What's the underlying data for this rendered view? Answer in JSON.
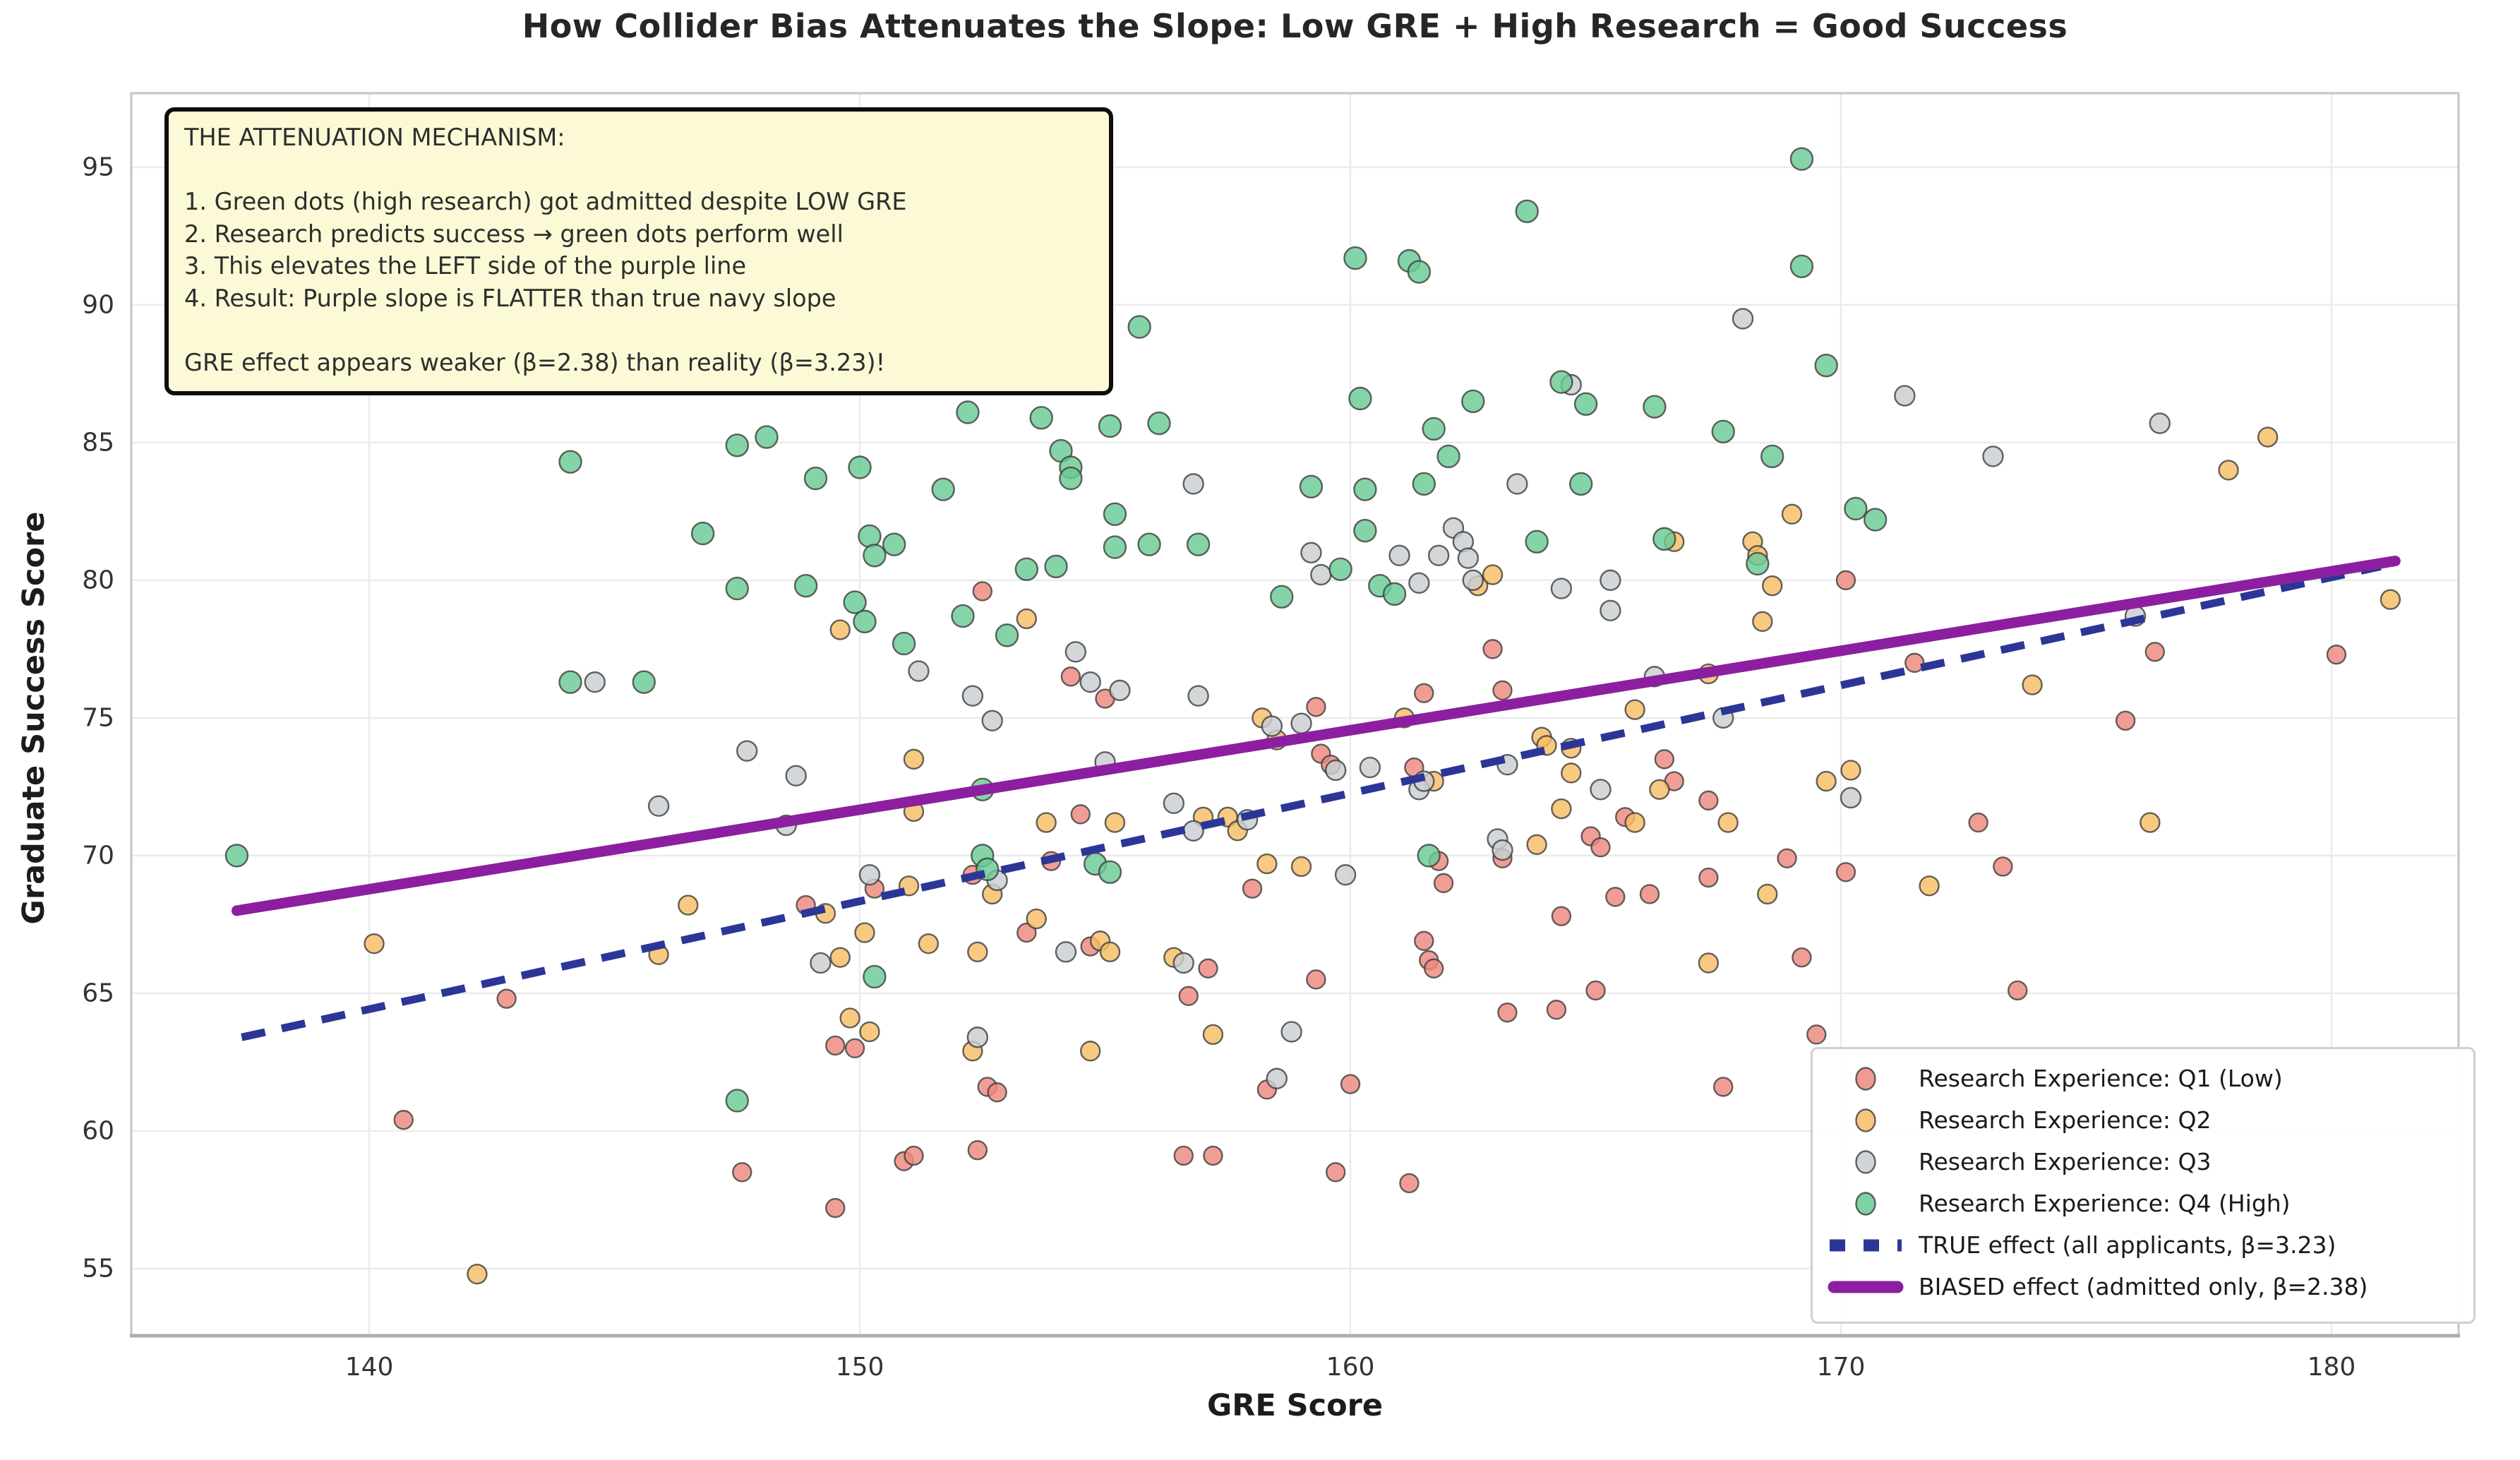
{
  "title": "How Collider Bias Attenuates the Slope: Low GRE + High Research = Good Success",
  "axes": {
    "xlabel": "GRE Score",
    "ylabel": "Graduate Success Score",
    "xticks": [
      140,
      150,
      160,
      170,
      180
    ],
    "yticks": [
      55,
      60,
      65,
      70,
      75,
      80,
      85,
      90,
      95
    ],
    "xlim": [
      135.15,
      182.59
    ],
    "ylim": [
      52.56,
      97.69
    ],
    "grid": true
  },
  "annotation": {
    "lines": [
      "THE ATTENUATION MECHANISM:",
      "",
      "1. Green dots (high research) got admitted despite LOW GRE",
      "2. Research predicts success → green dots perform well",
      "3. This elevates the LEFT side of the purple line",
      "4. Result: Purple slope is FLATTER than true navy slope",
      "",
      "GRE effect appears weaker (β=2.38) than reality (β=3.23)!"
    ],
    "background": "#fcfad6",
    "border_color": "#0d0d0d"
  },
  "legend": {
    "position": "lower right",
    "entries": [
      {
        "label": "Research Experience: Q1 (Low)",
        "marker": "dot",
        "color": "#ed897e"
      },
      {
        "label": "Research Experience: Q2",
        "marker": "dot",
        "color": "#f7bd64"
      },
      {
        "label": "Research Experience: Q3",
        "marker": "dot",
        "color": "#c9ced1"
      },
      {
        "label": "Research Experience: Q4 (High)",
        "marker": "dot",
        "color": "#69ca94"
      },
      {
        "label": "TRUE effect (all applicants, β=3.23)",
        "marker": "dashed-line",
        "color": "#2c3697"
      },
      {
        "label": "BIASED effect (admitted only, β=2.38)",
        "marker": "solid-line",
        "color": "#8c1f9f"
      }
    ]
  },
  "chart_data": {
    "type": "scatter",
    "title": "How Collider Bias Attenuates the Slope: Low GRE + High Research = Good Success",
    "xlabel": "GRE Score",
    "ylabel": "Graduate Success Score",
    "xlim": [
      135.15,
      182.59
    ],
    "ylim": [
      52.56,
      97.69
    ],
    "series": [
      {
        "name": "Research Experience: Q1 (Low)",
        "color": "#ed897e",
        "marker_radius": 13,
        "points": [
          [
            140.7,
            60.4
          ],
          [
            142.8,
            64.8
          ],
          [
            147.6,
            58.5
          ],
          [
            148.9,
            68.2
          ],
          [
            149.5,
            63.1
          ],
          [
            149.9,
            63.0
          ],
          [
            149.5,
            57.2
          ],
          [
            150.3,
            68.8
          ],
          [
            150.9,
            58.9
          ],
          [
            151.1,
            59.1
          ],
          [
            152.4,
            59.3
          ],
          [
            152.3,
            69.3
          ],
          [
            152.5,
            79.6
          ],
          [
            152.6,
            61.6
          ],
          [
            152.8,
            61.4
          ],
          [
            153.4,
            67.2
          ],
          [
            153.9,
            69.8
          ],
          [
            154.3,
            76.5
          ],
          [
            154.5,
            71.5
          ],
          [
            154.7,
            66.7
          ],
          [
            155.0,
            75.7
          ],
          [
            156.6,
            59.1
          ],
          [
            157.2,
            59.1
          ],
          [
            156.7,
            64.9
          ],
          [
            157.1,
            65.9
          ],
          [
            158.0,
            68.8
          ],
          [
            158.3,
            61.5
          ],
          [
            159.3,
            75.4
          ],
          [
            159.4,
            73.7
          ],
          [
            159.6,
            73.3
          ],
          [
            159.3,
            65.5
          ],
          [
            159.7,
            58.5
          ],
          [
            160.0,
            61.7
          ],
          [
            161.2,
            58.1
          ],
          [
            161.3,
            73.2
          ],
          [
            161.5,
            66.9
          ],
          [
            161.6,
            66.2
          ],
          [
            161.7,
            65.9
          ],
          [
            161.8,
            69.8
          ],
          [
            161.9,
            69.0
          ],
          [
            161.5,
            75.9
          ],
          [
            162.9,
            77.5
          ],
          [
            163.1,
            76.0
          ],
          [
            163.1,
            69.9
          ],
          [
            163.2,
            64.3
          ],
          [
            164.2,
            64.4
          ],
          [
            164.3,
            67.8
          ],
          [
            164.9,
            70.7
          ],
          [
            165.1,
            70.3
          ],
          [
            165.0,
            65.1
          ],
          [
            165.4,
            68.5
          ],
          [
            165.6,
            71.4
          ],
          [
            166.1,
            68.6
          ],
          [
            166.4,
            73.5
          ],
          [
            166.6,
            72.7
          ],
          [
            167.3,
            72.0
          ],
          [
            167.3,
            69.2
          ],
          [
            167.6,
            61.6
          ],
          [
            168.9,
            69.9
          ],
          [
            169.2,
            66.3
          ],
          [
            169.5,
            63.5
          ],
          [
            170.1,
            80.0
          ],
          [
            170.1,
            69.4
          ],
          [
            171.5,
            77.0
          ],
          [
            172.8,
            71.2
          ],
          [
            173.3,
            69.6
          ],
          [
            173.6,
            65.1
          ],
          [
            175.8,
            74.9
          ],
          [
            176.4,
            77.4
          ],
          [
            180.1,
            77.3
          ]
        ]
      },
      {
        "name": "Research Experience: Q2",
        "color": "#f7bd64",
        "marker_radius": 13.5,
        "points": [
          [
            140.1,
            66.8
          ],
          [
            142.2,
            54.8
          ],
          [
            145.9,
            66.4
          ],
          [
            146.5,
            68.2
          ],
          [
            149.3,
            67.9
          ],
          [
            149.6,
            78.2
          ],
          [
            149.6,
            66.3
          ],
          [
            149.8,
            64.1
          ],
          [
            150.2,
            63.6
          ],
          [
            150.1,
            67.2
          ],
          [
            151.0,
            68.9
          ],
          [
            151.1,
            73.5
          ],
          [
            151.1,
            71.6
          ],
          [
            151.4,
            66.8
          ],
          [
            152.3,
            62.9
          ],
          [
            152.4,
            66.5
          ],
          [
            152.7,
            68.6
          ],
          [
            153.4,
            78.6
          ],
          [
            153.6,
            67.7
          ],
          [
            153.8,
            71.2
          ],
          [
            154.7,
            62.9
          ],
          [
            154.9,
            66.9
          ],
          [
            155.1,
            66.5
          ],
          [
            155.2,
            71.2
          ],
          [
            156.4,
            66.3
          ],
          [
            157.0,
            71.4
          ],
          [
            157.2,
            63.5
          ],
          [
            157.5,
            71.4
          ],
          [
            157.7,
            70.9
          ],
          [
            158.2,
            75.0
          ],
          [
            158.3,
            69.7
          ],
          [
            158.5,
            74.2
          ],
          [
            159.0,
            69.6
          ],
          [
            161.1,
            75.0
          ],
          [
            161.7,
            72.7
          ],
          [
            162.6,
            79.8
          ],
          [
            162.9,
            80.2
          ],
          [
            163.8,
            70.4
          ],
          [
            163.9,
            74.3
          ],
          [
            164.0,
            74.0
          ],
          [
            164.3,
            71.7
          ],
          [
            164.5,
            73.9
          ],
          [
            164.5,
            73.0
          ],
          [
            165.8,
            75.3
          ],
          [
            165.8,
            71.2
          ],
          [
            166.3,
            72.4
          ],
          [
            166.6,
            81.4
          ],
          [
            167.3,
            76.6
          ],
          [
            167.3,
            66.1
          ],
          [
            167.7,
            71.2
          ],
          [
            168.2,
            81.4
          ],
          [
            168.3,
            80.9
          ],
          [
            168.4,
            78.5
          ],
          [
            168.5,
            68.6
          ],
          [
            168.6,
            79.8
          ],
          [
            169.0,
            82.4
          ],
          [
            169.7,
            72.7
          ],
          [
            170.2,
            73.1
          ],
          [
            171.8,
            68.9
          ],
          [
            173.9,
            76.2
          ],
          [
            176.3,
            71.2
          ],
          [
            177.9,
            84.0
          ],
          [
            178.7,
            85.2
          ],
          [
            181.2,
            79.3
          ]
        ]
      },
      {
        "name": "Research Experience: Q3",
        "color": "#c9ced1",
        "marker_radius": 14,
        "points": [
          [
            144.6,
            76.3
          ],
          [
            145.9,
            71.8
          ],
          [
            147.7,
            73.8
          ],
          [
            148.5,
            71.1
          ],
          [
            148.7,
            72.9
          ],
          [
            149.2,
            66.1
          ],
          [
            150.2,
            69.3
          ],
          [
            151.2,
            76.7
          ],
          [
            152.3,
            75.8
          ],
          [
            152.4,
            63.4
          ],
          [
            152.7,
            74.9
          ],
          [
            152.8,
            69.1
          ],
          [
            154.2,
            66.5
          ],
          [
            154.4,
            77.4
          ],
          [
            154.7,
            76.3
          ],
          [
            155.0,
            73.4
          ],
          [
            155.3,
            76.0
          ],
          [
            156.4,
            71.9
          ],
          [
            156.6,
            66.1
          ],
          [
            156.8,
            83.5
          ],
          [
            156.8,
            70.9
          ],
          [
            156.9,
            75.8
          ],
          [
            157.9,
            71.3
          ],
          [
            158.4,
            74.7
          ],
          [
            158.5,
            61.9
          ],
          [
            158.8,
            63.6
          ],
          [
            159.0,
            74.8
          ],
          [
            159.2,
            81.0
          ],
          [
            159.4,
            80.2
          ],
          [
            159.7,
            73.1
          ],
          [
            159.9,
            69.3
          ],
          [
            160.4,
            73.2
          ],
          [
            161.0,
            80.9
          ],
          [
            161.4,
            72.4
          ],
          [
            161.5,
            72.7
          ],
          [
            161.4,
            79.9
          ],
          [
            161.8,
            80.9
          ],
          [
            162.1,
            81.9
          ],
          [
            162.3,
            81.4
          ],
          [
            162.4,
            80.8
          ],
          [
            162.5,
            80.0
          ],
          [
            163.0,
            70.6
          ],
          [
            163.1,
            70.2
          ],
          [
            163.2,
            73.3
          ],
          [
            163.4,
            83.5
          ],
          [
            164.3,
            79.7
          ],
          [
            164.5,
            87.1
          ],
          [
            165.1,
            72.4
          ],
          [
            165.3,
            80.0
          ],
          [
            165.3,
            78.9
          ],
          [
            166.2,
            76.5
          ],
          [
            167.6,
            75.0
          ],
          [
            168.0,
            89.5
          ],
          [
            170.2,
            72.1
          ],
          [
            171.3,
            86.7
          ],
          [
            173.1,
            84.5
          ],
          [
            176.0,
            78.7
          ],
          [
            176.5,
            85.7
          ]
        ]
      },
      {
        "name": "Research Experience: Q4 (High)",
        "color": "#69ca94",
        "marker_radius": 15.5,
        "points": [
          [
            137.3,
            70.0
          ],
          [
            144.1,
            84.3
          ],
          [
            144.1,
            76.3
          ],
          [
            145.6,
            76.3
          ],
          [
            146.8,
            81.7
          ],
          [
            147.5,
            84.9
          ],
          [
            147.5,
            79.7
          ],
          [
            147.5,
            61.1
          ],
          [
            148.1,
            85.2
          ],
          [
            148.9,
            79.8
          ],
          [
            149.1,
            83.7
          ],
          [
            149.9,
            79.2
          ],
          [
            150.0,
            84.1
          ],
          [
            150.1,
            78.5
          ],
          [
            150.2,
            81.6
          ],
          [
            150.3,
            80.9
          ],
          [
            150.7,
            81.3
          ],
          [
            150.3,
            65.6
          ],
          [
            150.9,
            77.7
          ],
          [
            151.7,
            83.3
          ],
          [
            152.1,
            78.7
          ],
          [
            152.2,
            86.1
          ],
          [
            152.5,
            72.4
          ],
          [
            152.5,
            70.0
          ],
          [
            152.6,
            69.5
          ],
          [
            153.0,
            78.0
          ],
          [
            153.4,
            80.4
          ],
          [
            153.7,
            85.9
          ],
          [
            154.0,
            80.5
          ],
          [
            154.1,
            84.7
          ],
          [
            154.3,
            84.1
          ],
          [
            154.3,
            83.7
          ],
          [
            154.8,
            69.7
          ],
          [
            155.1,
            69.4
          ],
          [
            155.2,
            82.4
          ],
          [
            155.2,
            81.2
          ],
          [
            155.7,
            89.2
          ],
          [
            155.9,
            81.3
          ],
          [
            155.1,
            85.6
          ],
          [
            156.1,
            85.7
          ],
          [
            156.9,
            81.3
          ],
          [
            158.6,
            79.4
          ],
          [
            159.2,
            83.4
          ],
          [
            159.8,
            80.4
          ],
          [
            160.1,
            91.7
          ],
          [
            160.2,
            86.6
          ],
          [
            160.3,
            81.8
          ],
          [
            160.3,
            83.3
          ],
          [
            160.6,
            79.8
          ],
          [
            160.9,
            79.5
          ],
          [
            161.2,
            91.6
          ],
          [
            161.4,
            91.2
          ],
          [
            161.5,
            83.5
          ],
          [
            161.6,
            70.0
          ],
          [
            161.7,
            85.5
          ],
          [
            162.0,
            84.5
          ],
          [
            162.5,
            86.5
          ],
          [
            163.6,
            93.4
          ],
          [
            163.8,
            81.4
          ],
          [
            164.3,
            87.2
          ],
          [
            164.7,
            83.5
          ],
          [
            164.8,
            86.4
          ],
          [
            166.2,
            86.3
          ],
          [
            166.4,
            81.5
          ],
          [
            167.6,
            85.4
          ],
          [
            168.3,
            80.6
          ],
          [
            168.6,
            84.5
          ],
          [
            169.2,
            95.3
          ],
          [
            169.2,
            91.4
          ],
          [
            169.7,
            87.8
          ],
          [
            170.3,
            82.6
          ],
          [
            170.7,
            82.2
          ]
        ]
      }
    ],
    "lines": [
      {
        "name": "TRUE effect (all applicants, β=3.23)",
        "style": "dashed",
        "color": "#2c3697",
        "width": 11,
        "from": [
          137.4,
          63.4
        ],
        "to": [
          181.0,
          80.5
        ]
      },
      {
        "name": "BIASED effect (admitted only, β=2.38)",
        "style": "solid",
        "color": "#8c1f9f",
        "width": 15,
        "from": [
          137.3,
          68.0
        ],
        "to": [
          181.3,
          80.7
        ]
      }
    ]
  }
}
